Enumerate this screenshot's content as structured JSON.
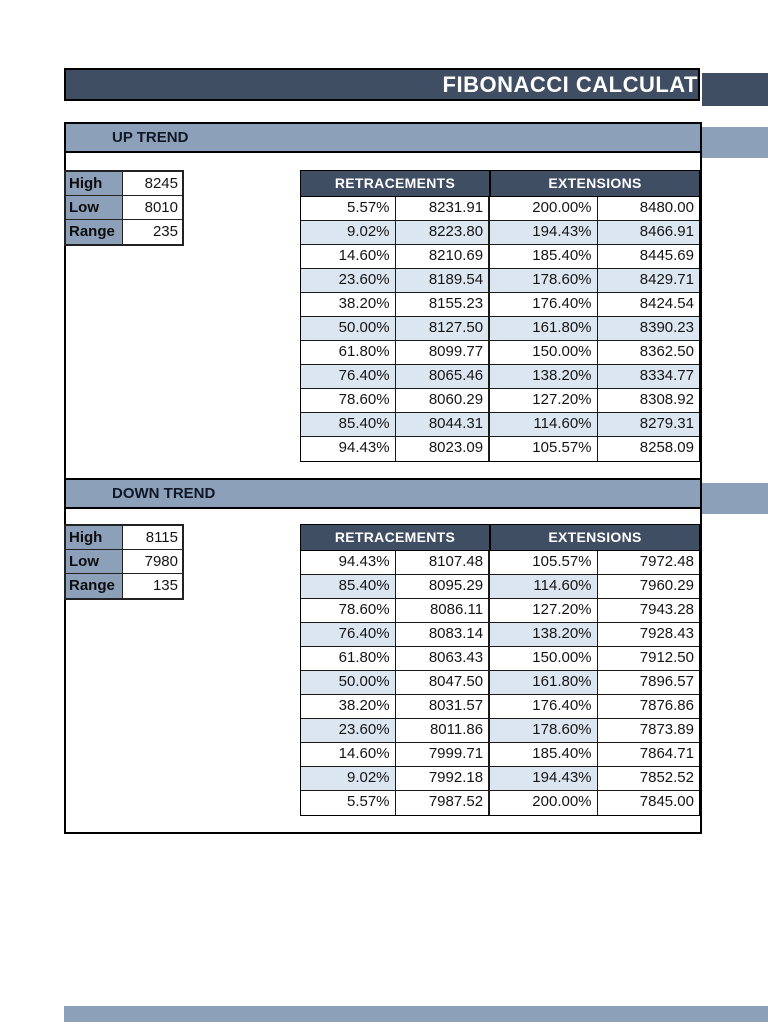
{
  "page": {
    "title": "FIBONACCI CALCULAT"
  },
  "colors": {
    "header_dark": "#3F4E63",
    "bar_blue": "#8CA0BA",
    "band_blue": "#DCE6F1",
    "border": "#000000"
  },
  "sections": [
    {
      "name": "UP TREND",
      "stats": [
        {
          "label": "High",
          "value": "8245"
        },
        {
          "label": "Low",
          "value": "8010"
        },
        {
          "label": "Range",
          "value": "235"
        }
      ],
      "table": {
        "headers": [
          "RETRACEMENTS",
          "EXTENSIONS"
        ],
        "rows": [
          [
            "5.57%",
            "8231.91",
            "200.00%",
            "8480.00"
          ],
          [
            "9.02%",
            "8223.80",
            "194.43%",
            "8466.91"
          ],
          [
            "14.60%",
            "8210.69",
            "185.40%",
            "8445.69"
          ],
          [
            "23.60%",
            "8189.54",
            "178.60%",
            "8429.71"
          ],
          [
            "38.20%",
            "8155.23",
            "176.40%",
            "8424.54"
          ],
          [
            "50.00%",
            "8127.50",
            "161.80%",
            "8390.23"
          ],
          [
            "61.80%",
            "8099.77",
            "150.00%",
            "8362.50"
          ],
          [
            "76.40%",
            "8065.46",
            "138.20%",
            "8334.77"
          ],
          [
            "78.60%",
            "8060.29",
            "127.20%",
            "8308.92"
          ],
          [
            "85.40%",
            "8044.31",
            "114.60%",
            "8279.31"
          ],
          [
            "94.43%",
            "8023.09",
            "105.57%",
            "8258.09"
          ]
        ]
      }
    },
    {
      "name": "DOWN TREND",
      "stats": [
        {
          "label": "High",
          "value": "8115"
        },
        {
          "label": "Low",
          "value": "7980"
        },
        {
          "label": "Range",
          "value": "135"
        }
      ],
      "table": {
        "headers": [
          "RETRACEMENTS",
          "EXTENSIONS"
        ],
        "rows": [
          [
            "94.43%",
            "8107.48",
            "105.57%",
            "7972.48"
          ],
          [
            "85.40%",
            "8095.29",
            "114.60%",
            "7960.29"
          ],
          [
            "78.60%",
            "8086.11",
            "127.20%",
            "7943.28"
          ],
          [
            "76.40%",
            "8083.14",
            "138.20%",
            "7928.43"
          ],
          [
            "61.80%",
            "8063.43",
            "150.00%",
            "7912.50"
          ],
          [
            "50.00%",
            "8047.50",
            "161.80%",
            "7896.57"
          ],
          [
            "38.20%",
            "8031.57",
            "176.40%",
            "7876.86"
          ],
          [
            "23.60%",
            "8011.86",
            "178.60%",
            "7873.89"
          ],
          [
            "14.60%",
            "7999.71",
            "185.40%",
            "7864.71"
          ],
          [
            "9.02%",
            "7992.18",
            "194.43%",
            "7852.52"
          ],
          [
            "5.57%",
            "7987.52",
            "200.00%",
            "7845.00"
          ]
        ]
      }
    }
  ]
}
